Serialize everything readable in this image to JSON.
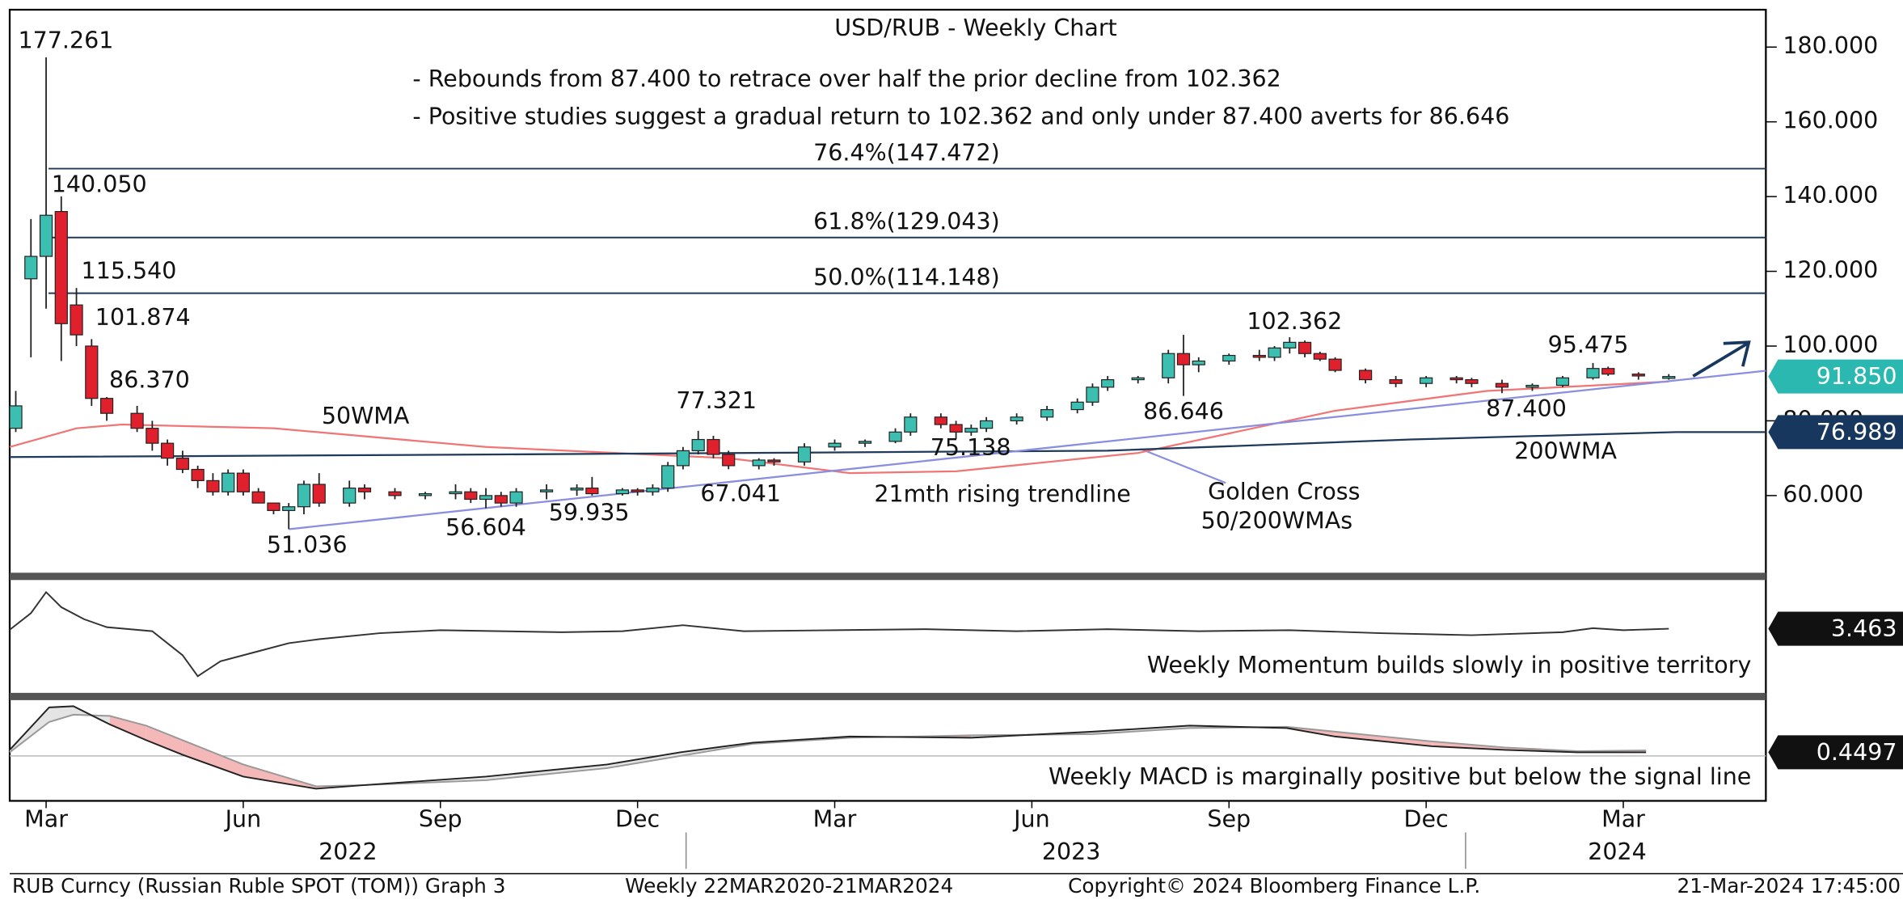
{
  "chart_data": {
    "type": "candlestick",
    "title": "USD/RUB - Weekly Chart",
    "notes": [
      "- Rebounds from 87.400 to retrace over half the prior decline from 102.362",
      "- Positive studies suggest a gradual return to 102.362 and only under 87.400 averts for 86.646"
    ],
    "up_color": "#3cbfb0",
    "down_color": "#e0202c",
    "xlim": [
      -2.4,
      113.4
    ],
    "xticks": [
      {
        "value": 0,
        "label": "Mar"
      },
      {
        "value": 13,
        "label": "Jun"
      },
      {
        "value": 26,
        "label": "Sep"
      },
      {
        "value": 39,
        "label": "Dec"
      },
      {
        "value": 52,
        "label": "Mar"
      },
      {
        "value": 65,
        "label": "Jun"
      },
      {
        "value": 78,
        "label": "Sep"
      },
      {
        "value": 91,
        "label": "Dec"
      },
      {
        "value": 104,
        "label": "Mar"
      }
    ],
    "year_labels": [
      {
        "value": 19.9,
        "label": "2022"
      },
      {
        "value": 67.6,
        "label": "2023"
      },
      {
        "value": 103.6,
        "label": "2024"
      }
    ],
    "year_breaks": [
      42.2,
      93.6
    ],
    "ylim": [
      40,
      190
    ],
    "yticks": [
      {
        "value": 60,
        "label": "60.000"
      },
      {
        "value": 80,
        "label": "80.000"
      },
      {
        "value": 100,
        "label": "100.000"
      },
      {
        "value": 120,
        "label": "120.000"
      },
      {
        "value": 140,
        "label": "140.000"
      },
      {
        "value": 160,
        "label": "160.000"
      },
      {
        "value": 180,
        "label": "180.000"
      }
    ],
    "fib_color": "#1f3a5a",
    "fib_levels": [
      {
        "value": 147.472,
        "label": "76.4%(147.472)"
      },
      {
        "value": 129.043,
        "label": "61.8%(129.043)"
      },
      {
        "value": 114.148,
        "label": "50.0%(114.148)"
      }
    ],
    "candles": [
      {
        "x": -2,
        "open": 78,
        "high": 88,
        "low": 77,
        "close": 84
      },
      {
        "x": -1,
        "open": 118,
        "high": 134,
        "low": 97,
        "close": 124
      },
      {
        "x": 0,
        "open": 124,
        "high": 177.261,
        "low": 110,
        "close": 135
      },
      {
        "x": 1,
        "open": 136,
        "high": 140.05,
        "low": 96,
        "close": 106
      },
      {
        "x": 2,
        "open": 111,
        "high": 115.54,
        "low": 100,
        "close": 103
      },
      {
        "x": 3,
        "open": 100,
        "high": 101.874,
        "low": 84,
        "close": 86
      },
      {
        "x": 4,
        "open": 86,
        "high": 86.37,
        "low": 80,
        "close": 82
      },
      {
        "x": 6,
        "open": 82,
        "high": 84,
        "low": 77,
        "close": 78
      },
      {
        "x": 7,
        "open": 78,
        "high": 80,
        "low": 72,
        "close": 74
      },
      {
        "x": 8,
        "open": 74,
        "high": 75,
        "low": 68,
        "close": 70
      },
      {
        "x": 9,
        "open": 70,
        "high": 72,
        "low": 66,
        "close": 67
      },
      {
        "x": 10,
        "open": 67,
        "high": 68,
        "low": 62,
        "close": 64
      },
      {
        "x": 11,
        "open": 64,
        "high": 66,
        "low": 60,
        "close": 61
      },
      {
        "x": 12,
        "open": 61,
        "high": 67,
        "low": 60,
        "close": 66
      },
      {
        "x": 13,
        "open": 66,
        "high": 67,
        "low": 60,
        "close": 61
      },
      {
        "x": 14,
        "open": 61,
        "high": 62,
        "low": 58,
        "close": 58
      },
      {
        "x": 15,
        "open": 58,
        "high": 58,
        "low": 55,
        "close": 56
      },
      {
        "x": 16,
        "open": 56,
        "high": 58,
        "low": 51.036,
        "close": 57
      },
      {
        "x": 17,
        "open": 57,
        "high": 64,
        "low": 55,
        "close": 63
      },
      {
        "x": 18,
        "open": 63,
        "high": 66,
        "low": 57,
        "close": 58
      },
      {
        "x": 20,
        "open": 58,
        "high": 64,
        "low": 57,
        "close": 62
      },
      {
        "x": 21,
        "open": 62,
        "high": 63,
        "low": 59,
        "close": 61
      },
      {
        "x": 23,
        "open": 61,
        "high": 62,
        "low": 59,
        "close": 60
      },
      {
        "x": 25,
        "open": 60,
        "high": 61,
        "low": 59,
        "close": 60.5
      },
      {
        "x": 27,
        "open": 60.5,
        "high": 63,
        "low": 59,
        "close": 61
      },
      {
        "x": 28,
        "open": 61,
        "high": 62,
        "low": 58,
        "close": 59
      },
      {
        "x": 29,
        "open": 59,
        "high": 62,
        "low": 56.604,
        "close": 60
      },
      {
        "x": 30,
        "open": 60,
        "high": 61,
        "low": 57,
        "close": 58
      },
      {
        "x": 31,
        "open": 58,
        "high": 62,
        "low": 57,
        "close": 61
      },
      {
        "x": 33,
        "open": 61,
        "high": 63,
        "low": 59,
        "close": 61.5
      },
      {
        "x": 35,
        "open": 61.5,
        "high": 63,
        "low": 59.935,
        "close": 62
      },
      {
        "x": 36,
        "open": 62,
        "high": 65,
        "low": 60,
        "close": 60.5
      },
      {
        "x": 38,
        "open": 60.5,
        "high": 62,
        "low": 60,
        "close": 61.5
      },
      {
        "x": 39,
        "open": 61.5,
        "high": 62,
        "low": 60,
        "close": 61
      },
      {
        "x": 40,
        "open": 61,
        "high": 63,
        "low": 60,
        "close": 62
      },
      {
        "x": 41,
        "open": 62,
        "high": 69,
        "low": 61,
        "close": 68
      },
      {
        "x": 42,
        "open": 68,
        "high": 73,
        "low": 67,
        "close": 72
      },
      {
        "x": 43,
        "open": 72,
        "high": 77.321,
        "low": 71,
        "close": 75
      },
      {
        "x": 44,
        "open": 75,
        "high": 76,
        "low": 70,
        "close": 71
      },
      {
        "x": 45,
        "open": 71,
        "high": 72,
        "low": 67.041,
        "close": 68
      },
      {
        "x": 47,
        "open": 68,
        "high": 70,
        "low": 67,
        "close": 69.5
      },
      {
        "x": 48,
        "open": 69.5,
        "high": 70,
        "low": 68,
        "close": 69
      },
      {
        "x": 50,
        "open": 69,
        "high": 74,
        "low": 68,
        "close": 73
      },
      {
        "x": 52,
        "open": 73,
        "high": 75,
        "low": 72,
        "close": 74
      },
      {
        "x": 54,
        "open": 74,
        "high": 75,
        "low": 73,
        "close": 74.5
      },
      {
        "x": 56,
        "open": 74.5,
        "high": 78,
        "low": 74,
        "close": 77
      },
      {
        "x": 57,
        "open": 77,
        "high": 82,
        "low": 76,
        "close": 81
      },
      {
        "x": 59,
        "open": 81,
        "high": 82,
        "low": 78,
        "close": 79
      },
      {
        "x": 60,
        "open": 79,
        "high": 80,
        "low": 75.138,
        "close": 77
      },
      {
        "x": 61,
        "open": 77,
        "high": 79,
        "low": 76,
        "close": 78
      },
      {
        "x": 62,
        "open": 78,
        "high": 81,
        "low": 77,
        "close": 80
      },
      {
        "x": 64,
        "open": 80,
        "high": 82,
        "low": 79,
        "close": 81
      },
      {
        "x": 66,
        "open": 81,
        "high": 84,
        "low": 80,
        "close": 83
      },
      {
        "x": 68,
        "open": 83,
        "high": 86,
        "low": 82,
        "close": 85
      },
      {
        "x": 69,
        "open": 85,
        "high": 90,
        "low": 84,
        "close": 89
      },
      {
        "x": 70,
        "open": 89,
        "high": 92,
        "low": 88,
        "close": 91
      },
      {
        "x": 72,
        "open": 91,
        "high": 92,
        "low": 90,
        "close": 91.5
      },
      {
        "x": 74,
        "open": 91.5,
        "high": 99,
        "low": 90,
        "close": 98
      },
      {
        "x": 75,
        "open": 98,
        "high": 103,
        "low": 86.646,
        "close": 95
      },
      {
        "x": 76,
        "open": 95,
        "high": 97,
        "low": 93,
        "close": 96
      },
      {
        "x": 78,
        "open": 96,
        "high": 98,
        "low": 95,
        "close": 97.5
      },
      {
        "x": 80,
        "open": 97.5,
        "high": 99,
        "low": 96,
        "close": 97
      },
      {
        "x": 81,
        "open": 97,
        "high": 100,
        "low": 96,
        "close": 99.5
      },
      {
        "x": 82,
        "open": 99.5,
        "high": 102.362,
        "low": 98,
        "close": 101
      },
      {
        "x": 83,
        "open": 101,
        "high": 101.5,
        "low": 97,
        "close": 98
      },
      {
        "x": 84,
        "open": 98,
        "high": 98.5,
        "low": 96,
        "close": 96.5
      },
      {
        "x": 85,
        "open": 96.5,
        "high": 97,
        "low": 93,
        "close": 93.5
      },
      {
        "x": 87,
        "open": 93.5,
        "high": 94,
        "low": 90,
        "close": 91
      },
      {
        "x": 89,
        "open": 91,
        "high": 92,
        "low": 89,
        "close": 90
      },
      {
        "x": 91,
        "open": 90,
        "high": 92,
        "low": 89,
        "close": 91.5
      },
      {
        "x": 93,
        "open": 91.5,
        "high": 92,
        "low": 90,
        "close": 91
      },
      {
        "x": 94,
        "open": 91,
        "high": 91.5,
        "low": 89,
        "close": 90
      },
      {
        "x": 96,
        "open": 90,
        "high": 91,
        "low": 87.4,
        "close": 89
      },
      {
        "x": 98,
        "open": 89,
        "high": 90,
        "low": 88,
        "close": 89.5
      },
      {
        "x": 100,
        "open": 89.5,
        "high": 92,
        "low": 89,
        "close": 91.5
      },
      {
        "x": 102,
        "open": 91.5,
        "high": 95.475,
        "low": 91,
        "close": 94
      },
      {
        "x": 103,
        "open": 94,
        "high": 94.5,
        "low": 92,
        "close": 92.5
      },
      {
        "x": 105,
        "open": 92.5,
        "high": 93,
        "low": 91,
        "close": 92
      },
      {
        "x": 107,
        "open": 91.8,
        "high": 92.5,
        "low": 91,
        "close": 91.85
      }
    ],
    "lines": [
      {
        "name": "50WMA",
        "color": "#f07575",
        "x": [
          -2.4,
          2,
          5,
          15,
          29,
          45,
          53,
          60,
          72,
          85,
          95,
          107
        ],
        "values": [
          73,
          78,
          79,
          78,
          73,
          70,
          66,
          66.5,
          71.4,
          82.7,
          88,
          90.5
        ]
      },
      {
        "name": "200WMA",
        "color": "#1f3a5a",
        "x": [
          -2.4,
          30,
          50,
          70,
          90,
          107.5,
          113.4
        ],
        "values": [
          70.3,
          71,
          71.5,
          72,
          75,
          76.989,
          76.989
        ]
      },
      {
        "name": "21mth rising trendline",
        "color": "#8a8ee0",
        "x": [
          16,
          113.4
        ],
        "values": [
          51,
          93.4
        ]
      }
    ],
    "golden_cross": [
      "Golden Cross",
      "50/200WMAs"
    ],
    "price_labels": [
      {
        "x": 0,
        "value": 177.261,
        "label": "177.261"
      },
      {
        "x": 1,
        "value": 140.05,
        "label": "140.050"
      },
      {
        "x": 2,
        "value": 115.54,
        "label": "115.540"
      },
      {
        "x": 3,
        "value": 101.874,
        "label": "101.874"
      },
      {
        "x": 4,
        "value": 86.37,
        "label": "86.370"
      },
      {
        "x": 16,
        "value": 51.036,
        "label": "51.036"
      },
      {
        "x": 29,
        "value": 56.604,
        "label": "56.604"
      },
      {
        "x": 35,
        "value": 59.935,
        "label": "59.935"
      },
      {
        "x": 43,
        "value": 77.321,
        "label": "77.321"
      },
      {
        "x": 45,
        "value": 67.041,
        "label": "67.041"
      },
      {
        "x": 60,
        "value": 75.138,
        "label": "75.138"
      },
      {
        "x": 75,
        "value": 86.646,
        "label": "86.646"
      },
      {
        "x": 82,
        "value": 102.362,
        "label": "102.362"
      },
      {
        "x": 96,
        "value": 87.4,
        "label": "87.400"
      },
      {
        "x": 102,
        "value": 95.475,
        "label": "95.475"
      }
    ],
    "last_tags": [
      {
        "value": 91.85,
        "label": "91.850",
        "color": "#2bb8b0"
      },
      {
        "value": 76.989,
        "label": "76.989",
        "color": "#17375e"
      }
    ],
    "momentum": {
      "caption": "Weekly Momentum builds slowly in positive territory",
      "color": "#333333",
      "ylim": [
        -59.4,
        49.7
      ],
      "x": [
        -2.4,
        -1,
        0,
        1,
        2.5,
        4,
        7,
        9,
        10,
        11.5,
        14,
        16,
        18,
        22,
        26,
        30,
        34,
        38,
        42,
        46,
        52,
        58,
        64,
        70,
        76,
        82,
        88,
        94,
        100,
        102,
        104,
        107
      ],
      "values": [
        2.4,
        19,
        40,
        25,
        13,
        5,
        1,
        -23,
        -44,
        -29,
        -19,
        -11,
        -7,
        -1,
        2,
        1,
        0,
        1,
        7,
        1,
        2,
        3,
        1,
        3,
        1,
        2,
        -1,
        -3,
        0,
        4,
        2,
        3.463
      ],
      "tag": {
        "value": 3.463,
        "label": "3.463"
      }
    },
    "macd": {
      "caption": "Weekly MACD is marginally positive but below the signal line",
      "macd_color": "#222222",
      "signal_color": "#999999",
      "above_fill": "#e4e4e4",
      "below_fill": "#f4b8b8",
      "ylim": [
        -5.55,
        6.75
      ],
      "x": [
        -2.4,
        0.2,
        1.8,
        4.2,
        6.6,
        9,
        13,
        17.8,
        21,
        29,
        37,
        41.8,
        46.6,
        53,
        61,
        69,
        75.4,
        81.8,
        85,
        91.4,
        96.2,
        101,
        105.5
      ],
      "macd": [
        0.75,
        6.0,
        6.15,
        3.9,
        1.95,
        0.15,
        -2.55,
        -4.05,
        -3.6,
        -2.55,
        -1.05,
        0.45,
        1.65,
        2.4,
        2.25,
        3.0,
        3.75,
        3.45,
        2.4,
        1.2,
        0.75,
        0.45,
        0.4497
      ],
      "signal": [
        0.45,
        4.2,
        5.1,
        4.95,
        3.75,
        1.95,
        -1.05,
        -3.75,
        -3.6,
        -3.0,
        -1.5,
        0,
        1.5,
        2.25,
        2.55,
        2.7,
        3.45,
        3.6,
        3.0,
        1.8,
        1.05,
        0.6,
        0.68
      ],
      "tag": {
        "value": 0.4497,
        "label": "0.4497"
      }
    },
    "footer": [
      "RUB Curncy (Russian Ruble SPOT (TOM)) Graph 3",
      "Weekly 22MAR2020-21MAR2024",
      "Copyright© 2024 Bloomberg Finance L.P.",
      "21-Mar-2024 17:45:00"
    ]
  }
}
